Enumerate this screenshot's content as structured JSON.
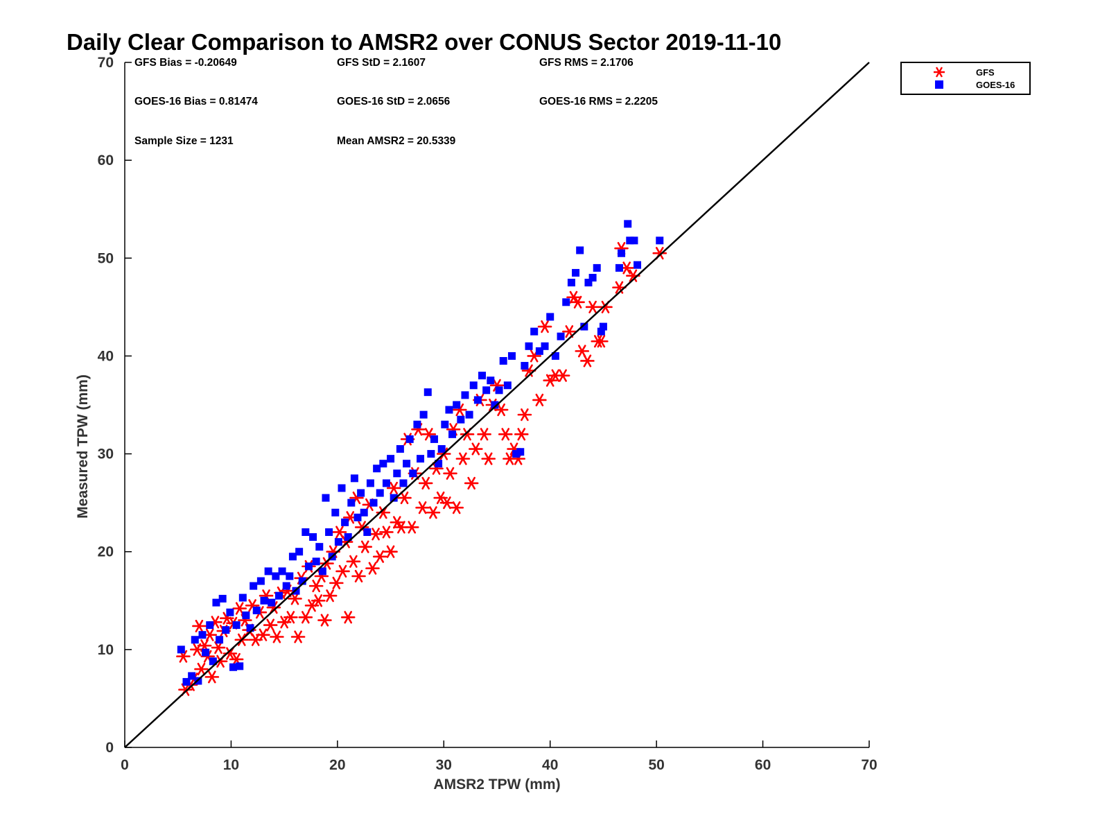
{
  "chart_data": {
    "type": "scatter",
    "title": "Daily Clear Comparison to AMSR2 over CONUS Sector 2019-11-10",
    "xlabel": "AMSR2 TPW (mm)",
    "ylabel": "Measured TPW (mm)",
    "xlim": [
      0,
      70
    ],
    "ylim": [
      0,
      70
    ],
    "xticks": [
      "0",
      "10",
      "20",
      "30",
      "40",
      "50",
      "60",
      "70"
    ],
    "yticks": [
      "0",
      "10",
      "20",
      "30",
      "40",
      "50",
      "60",
      "70"
    ],
    "grid": false,
    "legend_position": "outside top-right",
    "reference_line": {
      "x": [
        0,
        70
      ],
      "y": [
        0,
        70
      ],
      "color": "#000000"
    },
    "stats": [
      "GFS Bias = -0.20649",
      "GFS StD = 2.1607",
      "GFS RMS = 2.1706",
      "GOES-16 Bias = 0.81474",
      "GOES-16 StD = 2.0656",
      "GOES-16 RMS = 2.2205",
      "Sample Size = 1231",
      "Mean AMSR2 = 20.5339"
    ],
    "series": [
      {
        "name": "GFS",
        "marker": "asterisk",
        "color": "#ff0000",
        "points": [
          [
            5.5,
            9.3
          ],
          [
            5.7,
            5.9
          ],
          [
            6.2,
            6.4
          ],
          [
            6.5,
            7.0
          ],
          [
            6.8,
            10.0
          ],
          [
            7.0,
            12.4
          ],
          [
            7.2,
            8.0
          ],
          [
            7.5,
            10.4
          ],
          [
            7.8,
            9.3
          ],
          [
            8.0,
            11.5
          ],
          [
            8.2,
            7.2
          ],
          [
            8.5,
            12.8
          ],
          [
            8.8,
            10.2
          ],
          [
            9.0,
            8.8
          ],
          [
            9.3,
            11.9
          ],
          [
            9.6,
            13.2
          ],
          [
            9.9,
            9.6
          ],
          [
            10.2,
            12.7
          ],
          [
            10.5,
            9.0
          ],
          [
            10.8,
            14.2
          ],
          [
            11.0,
            11.0
          ],
          [
            11.3,
            13.0
          ],
          [
            11.7,
            12.0
          ],
          [
            12.0,
            14.5
          ],
          [
            12.3,
            11.0
          ],
          [
            12.7,
            13.8
          ],
          [
            13.0,
            11.5
          ],
          [
            13.3,
            15.5
          ],
          [
            13.7,
            12.5
          ],
          [
            14.0,
            14.3
          ],
          [
            14.3,
            11.3
          ],
          [
            14.7,
            15.8
          ],
          [
            15.0,
            12.8
          ],
          [
            15.3,
            16.0
          ],
          [
            15.6,
            13.3
          ],
          [
            16.0,
            15.2
          ],
          [
            16.3,
            11.3
          ],
          [
            16.6,
            17.3
          ],
          [
            17.0,
            13.3
          ],
          [
            17.3,
            18.5
          ],
          [
            17.6,
            14.5
          ],
          [
            18.0,
            16.5
          ],
          [
            18.2,
            15.0
          ],
          [
            18.5,
            17.5
          ],
          [
            18.8,
            13.0
          ],
          [
            19.0,
            18.8
          ],
          [
            19.3,
            15.5
          ],
          [
            19.6,
            20.0
          ],
          [
            19.9,
            16.8
          ],
          [
            20.2,
            22.0
          ],
          [
            20.5,
            18.0
          ],
          [
            20.8,
            21.0
          ],
          [
            21.0,
            13.3
          ],
          [
            21.2,
            23.5
          ],
          [
            21.5,
            19.0
          ],
          [
            21.8,
            25.5
          ],
          [
            22.0,
            17.5
          ],
          [
            22.3,
            22.5
          ],
          [
            22.6,
            20.5
          ],
          [
            23.0,
            24.8
          ],
          [
            23.3,
            18.3
          ],
          [
            23.6,
            21.8
          ],
          [
            24.0,
            19.5
          ],
          [
            24.3,
            24.0
          ],
          [
            24.6,
            22.0
          ],
          [
            25.0,
            20.0
          ],
          [
            25.3,
            26.5
          ],
          [
            25.6,
            23.0
          ],
          [
            26.0,
            22.5
          ],
          [
            26.3,
            25.5
          ],
          [
            26.6,
            31.5
          ],
          [
            27.0,
            22.5
          ],
          [
            27.3,
            28.0
          ],
          [
            27.6,
            32.5
          ],
          [
            28.0,
            24.5
          ],
          [
            28.3,
            27.0
          ],
          [
            28.6,
            32.0
          ],
          [
            29.0,
            24.0
          ],
          [
            29.3,
            28.5
          ],
          [
            29.7,
            25.5
          ],
          [
            30.0,
            30.0
          ],
          [
            30.3,
            25.0
          ],
          [
            30.6,
            28.0
          ],
          [
            30.9,
            32.5
          ],
          [
            31.2,
            24.5
          ],
          [
            31.5,
            34.5
          ],
          [
            31.8,
            29.5
          ],
          [
            32.2,
            32.0
          ],
          [
            32.6,
            27.0
          ],
          [
            33.0,
            30.5
          ],
          [
            33.4,
            35.5
          ],
          [
            33.8,
            32.0
          ],
          [
            34.2,
            29.5
          ],
          [
            34.6,
            35.0
          ],
          [
            35.0,
            37.0
          ],
          [
            35.4,
            34.5
          ],
          [
            35.8,
            32.0
          ],
          [
            36.2,
            29.5
          ],
          [
            36.6,
            30.5
          ],
          [
            37.0,
            29.5
          ],
          [
            37.3,
            32.0
          ],
          [
            37.6,
            34.0
          ],
          [
            38.0,
            38.5
          ],
          [
            38.5,
            40.0
          ],
          [
            39.0,
            35.5
          ],
          [
            39.5,
            43.0
          ],
          [
            40.0,
            37.5
          ],
          [
            40.5,
            38.0
          ],
          [
            41.2,
            38.0
          ],
          [
            41.8,
            42.5
          ],
          [
            42.2,
            46.0
          ],
          [
            42.6,
            45.5
          ],
          [
            43.0,
            40.5
          ],
          [
            43.5,
            39.5
          ],
          [
            44.0,
            45.0
          ],
          [
            44.5,
            41.5
          ],
          [
            44.8,
            41.5
          ],
          [
            45.2,
            45.0
          ],
          [
            46.5,
            47.0
          ],
          [
            46.7,
            51.0
          ],
          [
            47.2,
            49.0
          ],
          [
            47.8,
            48.2
          ],
          [
            50.3,
            50.5
          ]
        ]
      },
      {
        "name": "GOES-16",
        "marker": "square",
        "color": "#0000ff",
        "points": [
          [
            5.3,
            10.0
          ],
          [
            5.8,
            6.7
          ],
          [
            6.3,
            7.3
          ],
          [
            6.6,
            11.0
          ],
          [
            6.9,
            6.8
          ],
          [
            7.3,
            11.5
          ],
          [
            7.6,
            9.7
          ],
          [
            8.0,
            12.5
          ],
          [
            8.3,
            8.8
          ],
          [
            8.6,
            14.8
          ],
          [
            8.9,
            11.0
          ],
          [
            9.2,
            15.2
          ],
          [
            9.5,
            12.0
          ],
          [
            9.9,
            13.8
          ],
          [
            10.2,
            8.2
          ],
          [
            10.5,
            12.5
          ],
          [
            10.8,
            8.3
          ],
          [
            11.1,
            15.3
          ],
          [
            11.4,
            13.5
          ],
          [
            11.8,
            12.2
          ],
          [
            12.1,
            16.5
          ],
          [
            12.4,
            14.0
          ],
          [
            12.8,
            17.0
          ],
          [
            13.1,
            15.0
          ],
          [
            13.5,
            18.0
          ],
          [
            13.8,
            14.8
          ],
          [
            14.2,
            17.5
          ],
          [
            14.5,
            15.5
          ],
          [
            14.8,
            18.0
          ],
          [
            15.2,
            16.5
          ],
          [
            15.5,
            17.5
          ],
          [
            15.8,
            19.5
          ],
          [
            16.1,
            16.0
          ],
          [
            16.4,
            20.0
          ],
          [
            16.7,
            17.0
          ],
          [
            17.0,
            22.0
          ],
          [
            17.3,
            18.5
          ],
          [
            17.7,
            21.5
          ],
          [
            18.0,
            19.0
          ],
          [
            18.3,
            20.5
          ],
          [
            18.6,
            18.0
          ],
          [
            18.9,
            25.5
          ],
          [
            19.2,
            22.0
          ],
          [
            19.5,
            19.5
          ],
          [
            19.8,
            24.0
          ],
          [
            20.1,
            21.0
          ],
          [
            20.4,
            26.5
          ],
          [
            20.7,
            23.0
          ],
          [
            21.0,
            21.5
          ],
          [
            21.3,
            25.0
          ],
          [
            21.6,
            27.5
          ],
          [
            21.9,
            23.5
          ],
          [
            22.2,
            26.0
          ],
          [
            22.5,
            24.0
          ],
          [
            22.8,
            22.0
          ],
          [
            23.1,
            27.0
          ],
          [
            23.4,
            25.0
          ],
          [
            23.7,
            28.5
          ],
          [
            24.0,
            26.0
          ],
          [
            24.3,
            29.0
          ],
          [
            24.6,
            27.0
          ],
          [
            25.0,
            29.5
          ],
          [
            25.3,
            25.5
          ],
          [
            25.6,
            28.0
          ],
          [
            25.9,
            30.5
          ],
          [
            26.2,
            27.0
          ],
          [
            26.5,
            29.0
          ],
          [
            26.8,
            31.5
          ],
          [
            27.1,
            28.0
          ],
          [
            27.5,
            33.0
          ],
          [
            27.8,
            29.5
          ],
          [
            28.1,
            34.0
          ],
          [
            28.5,
            36.3
          ],
          [
            28.8,
            30.0
          ],
          [
            29.1,
            31.5
          ],
          [
            29.5,
            29.0
          ],
          [
            29.8,
            30.5
          ],
          [
            30.1,
            33.0
          ],
          [
            30.5,
            34.5
          ],
          [
            30.8,
            32.0
          ],
          [
            31.2,
            35.0
          ],
          [
            31.6,
            33.5
          ],
          [
            32.0,
            36.0
          ],
          [
            32.4,
            34.0
          ],
          [
            32.8,
            37.0
          ],
          [
            33.2,
            35.5
          ],
          [
            33.6,
            38.0
          ],
          [
            34.0,
            36.5
          ],
          [
            34.4,
            37.5
          ],
          [
            34.8,
            35.0
          ],
          [
            35.2,
            36.5
          ],
          [
            35.6,
            39.5
          ],
          [
            36.0,
            37.0
          ],
          [
            36.4,
            40.0
          ],
          [
            36.8,
            30.0
          ],
          [
            37.2,
            30.2
          ],
          [
            37.6,
            39.0
          ],
          [
            38.0,
            41.0
          ],
          [
            38.5,
            42.5
          ],
          [
            39.0,
            40.5
          ],
          [
            39.5,
            41.0
          ],
          [
            40.0,
            44.0
          ],
          [
            40.5,
            40.0
          ],
          [
            41.0,
            42.0
          ],
          [
            41.5,
            45.5
          ],
          [
            42.0,
            47.5
          ],
          [
            42.4,
            48.5
          ],
          [
            42.8,
            50.8
          ],
          [
            43.2,
            43.0
          ],
          [
            43.6,
            47.5
          ],
          [
            44.0,
            48.0
          ],
          [
            44.4,
            49.0
          ],
          [
            44.8,
            42.5
          ],
          [
            45.0,
            43.0
          ],
          [
            46.5,
            49.0
          ],
          [
            46.7,
            50.5
          ],
          [
            47.3,
            53.5
          ],
          [
            47.5,
            51.8
          ],
          [
            47.9,
            51.8
          ],
          [
            50.3,
            51.8
          ],
          [
            48.2,
            49.3
          ]
        ]
      }
    ]
  },
  "legend": {
    "items": [
      {
        "label": "GFS",
        "marker": "asterisk",
        "color": "#ff0000"
      },
      {
        "label": "GOES-16",
        "marker": "square",
        "color": "#0000ff"
      }
    ]
  }
}
